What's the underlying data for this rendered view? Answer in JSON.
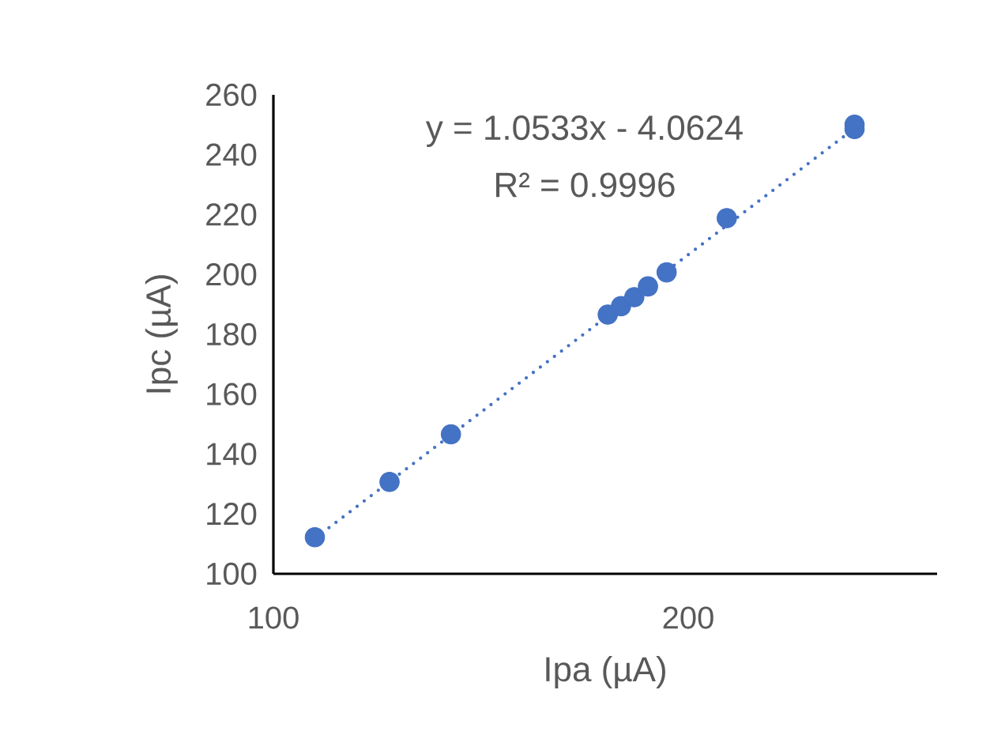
{
  "chart_data": {
    "type": "scatter",
    "xlabel": "Ipa (µA)",
    "ylabel": "Ipc (µA)",
    "xlim": [
      100,
      260
    ],
    "xticks": [
      100,
      200
    ],
    "ylim": [
      100,
      260
    ],
    "yticks": [
      100,
      120,
      140,
      160,
      180,
      200,
      220,
      240,
      260
    ],
    "grid": false,
    "marker": "circle",
    "annotations": [
      "y = 1.0533x - 4.0624",
      "R² = 0.9996"
    ],
    "series": [
      {
        "type": "line",
        "color": "#4472c4",
        "line_style": "dotted",
        "marker": "none",
        "x": [
          110,
          240
        ],
        "values": [
          111.8,
          248.7
        ]
      },
      {
        "color": "#4472c4",
        "x": [
          110,
          128,
          142.8,
          180.6,
          183.8,
          187,
          190.3,
          194.8,
          209.3,
          240.1,
          240.1
        ],
        "values": [
          112.2,
          130.7,
          146.6,
          186.6,
          189.4,
          192.4,
          196,
          200.7,
          218.8,
          250,
          248.6
        ]
      }
    ]
  }
}
